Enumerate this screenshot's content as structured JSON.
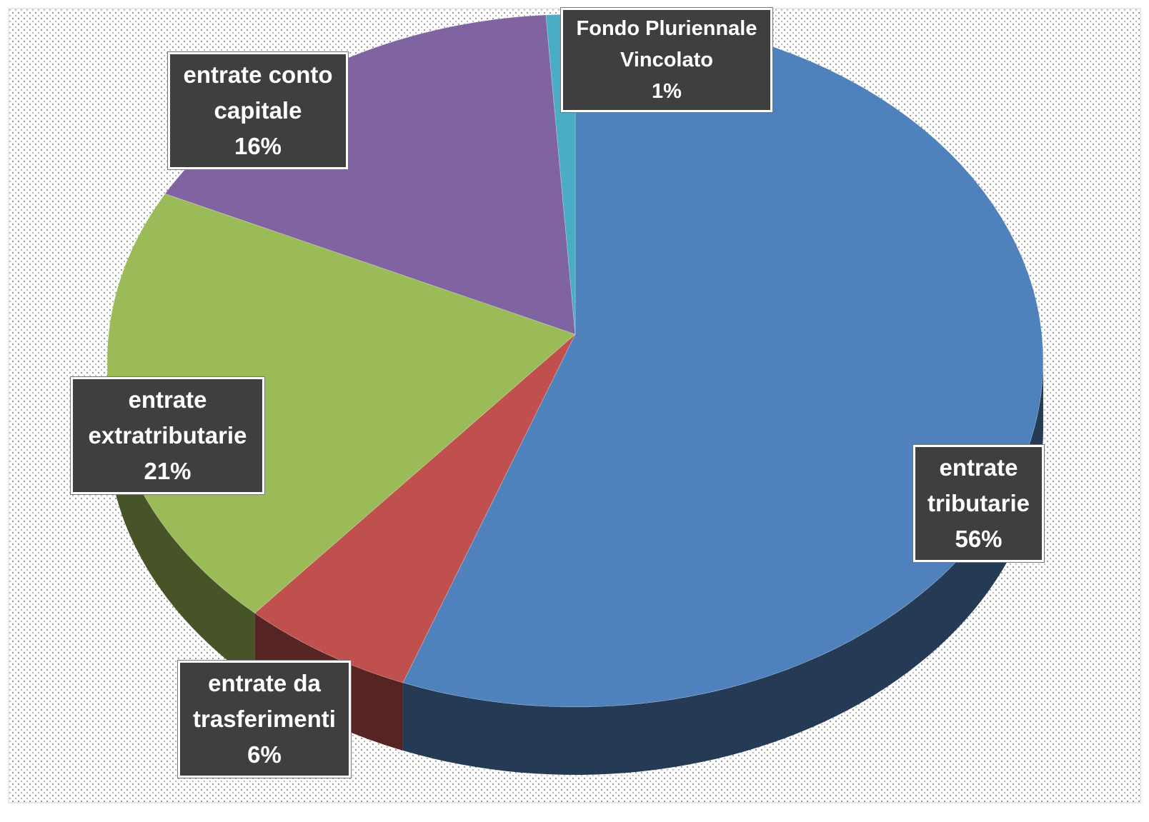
{
  "chart_data": {
    "type": "pie",
    "categories": [
      "entrate tributarie",
      "entrate da trasferimenti",
      "entrate extratributarie",
      "entrate conto capitale",
      "Fondo Pluriennale Vincolato"
    ],
    "values": [
      56,
      6,
      21,
      16,
      1
    ],
    "value_labels": [
      "56%",
      "6%",
      "21%",
      "16%",
      "1%"
    ],
    "colors": [
      "#4f81bd",
      "#c0504d",
      "#9bbb59",
      "#8064a2",
      "#4bacc6"
    ]
  }
}
